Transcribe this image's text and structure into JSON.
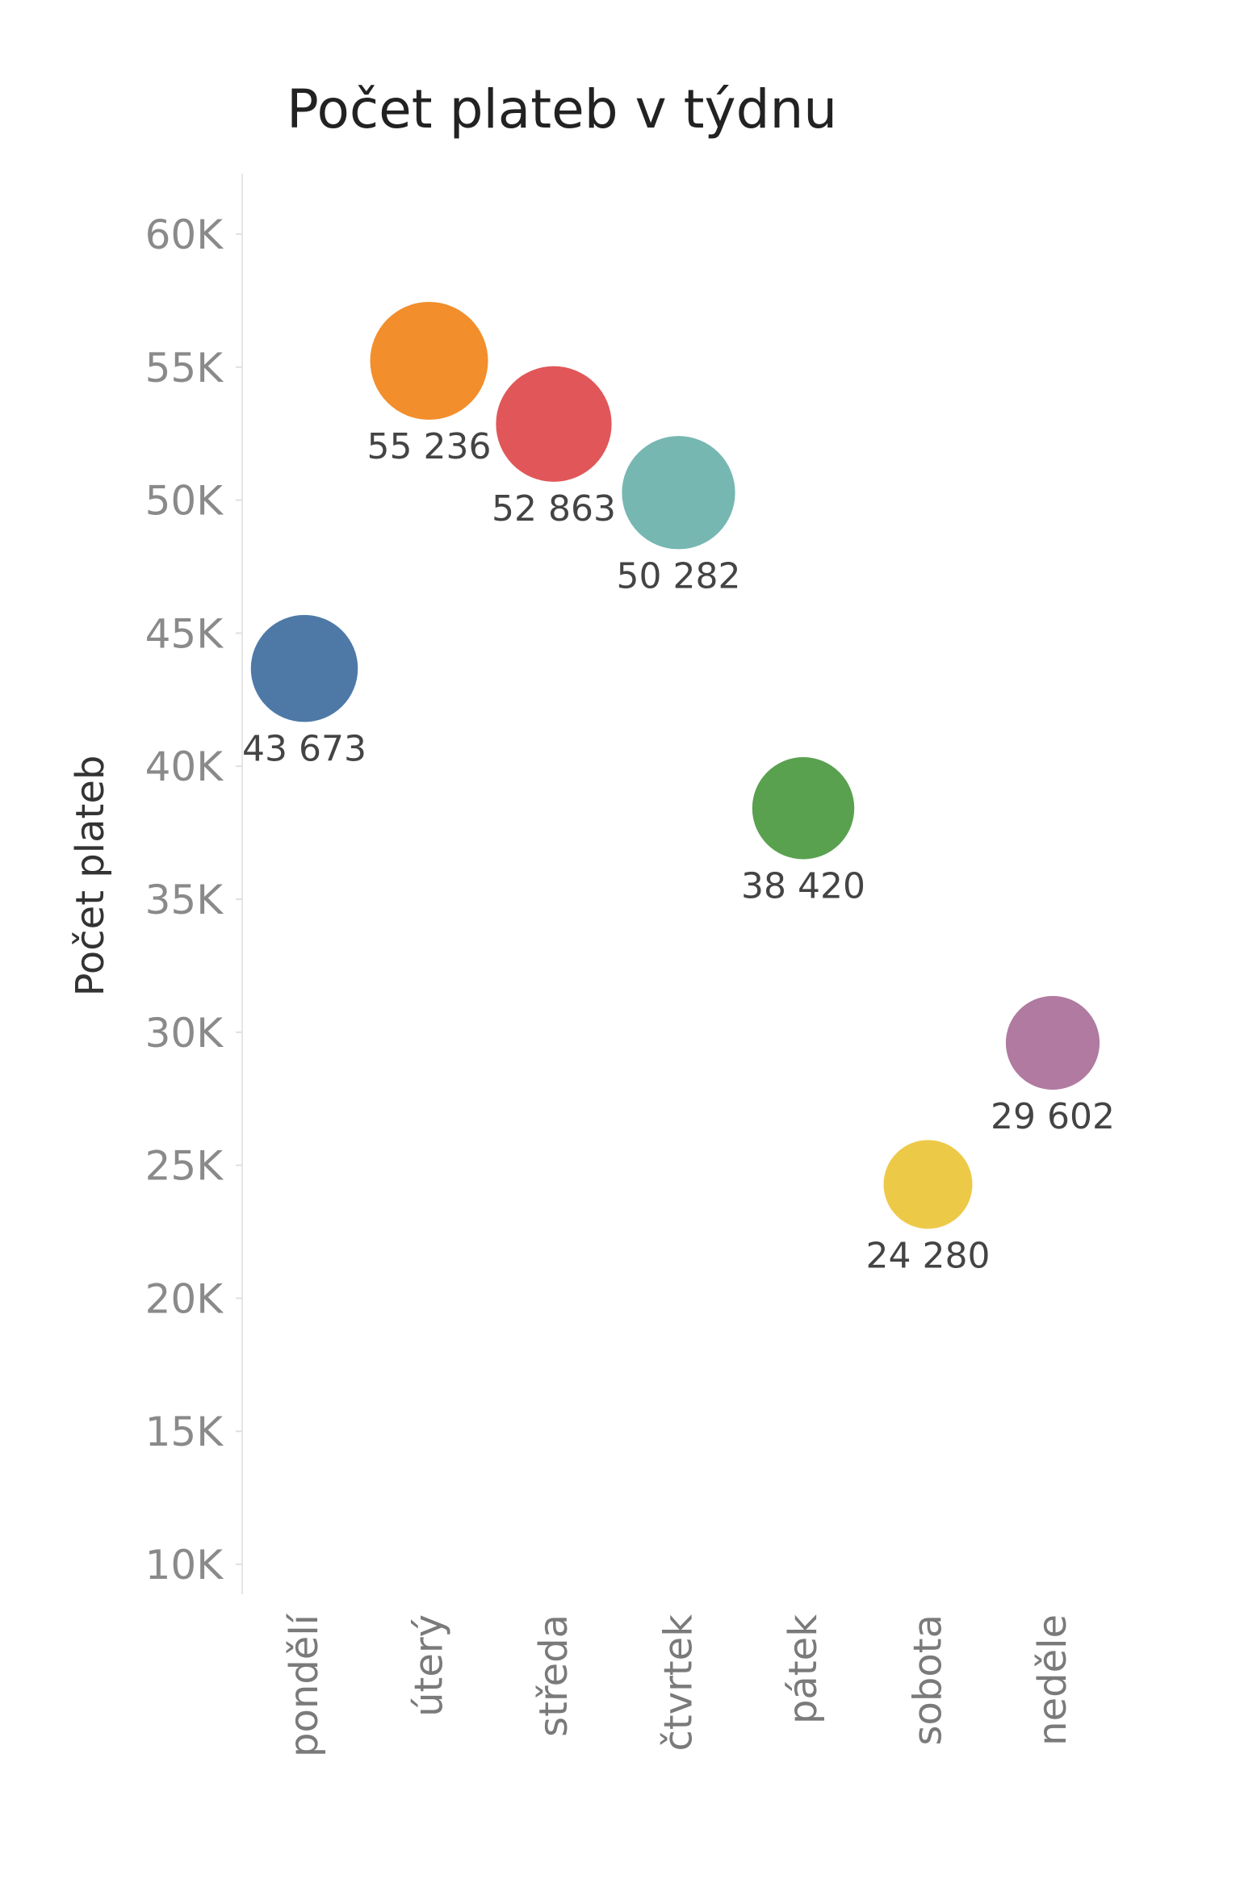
{
  "chart_data": {
    "type": "scatter",
    "title": "Počet plateb v týdnu",
    "ylabel": "Počet plateb",
    "xlabel": "",
    "ylim": [
      10000,
      60000
    ],
    "yticks": [
      {
        "value": 10000,
        "label": "10K"
      },
      {
        "value": 15000,
        "label": "15K"
      },
      {
        "value": 20000,
        "label": "20K"
      },
      {
        "value": 25000,
        "label": "25K"
      },
      {
        "value": 30000,
        "label": "30K"
      },
      {
        "value": 35000,
        "label": "35K"
      },
      {
        "value": 40000,
        "label": "40K"
      },
      {
        "value": 45000,
        "label": "45K"
      },
      {
        "value": 50000,
        "label": "50K"
      },
      {
        "value": 55000,
        "label": "55K"
      },
      {
        "value": 60000,
        "label": "60K"
      }
    ],
    "grid": false,
    "legend": "none",
    "points": [
      {
        "category": "pondělí",
        "value": 43673,
        "label": "43 673",
        "color": "#4e79a7"
      },
      {
        "category": "úterý",
        "value": 55236,
        "label": "55 236",
        "color": "#f28e2b"
      },
      {
        "category": "středa",
        "value": 52863,
        "label": "52 863",
        "color": "#e15759"
      },
      {
        "category": "čtvrtek",
        "value": 50282,
        "label": "50 282",
        "color": "#76b7b2"
      },
      {
        "category": "pátek",
        "value": 38420,
        "label": "38 420",
        "color": "#59a14f"
      },
      {
        "category": "sobota",
        "value": 24280,
        "label": "24 280",
        "color": "#edc948"
      },
      {
        "category": "neděle",
        "value": 29602,
        "label": "29 602",
        "color": "#b07aa1"
      }
    ]
  }
}
